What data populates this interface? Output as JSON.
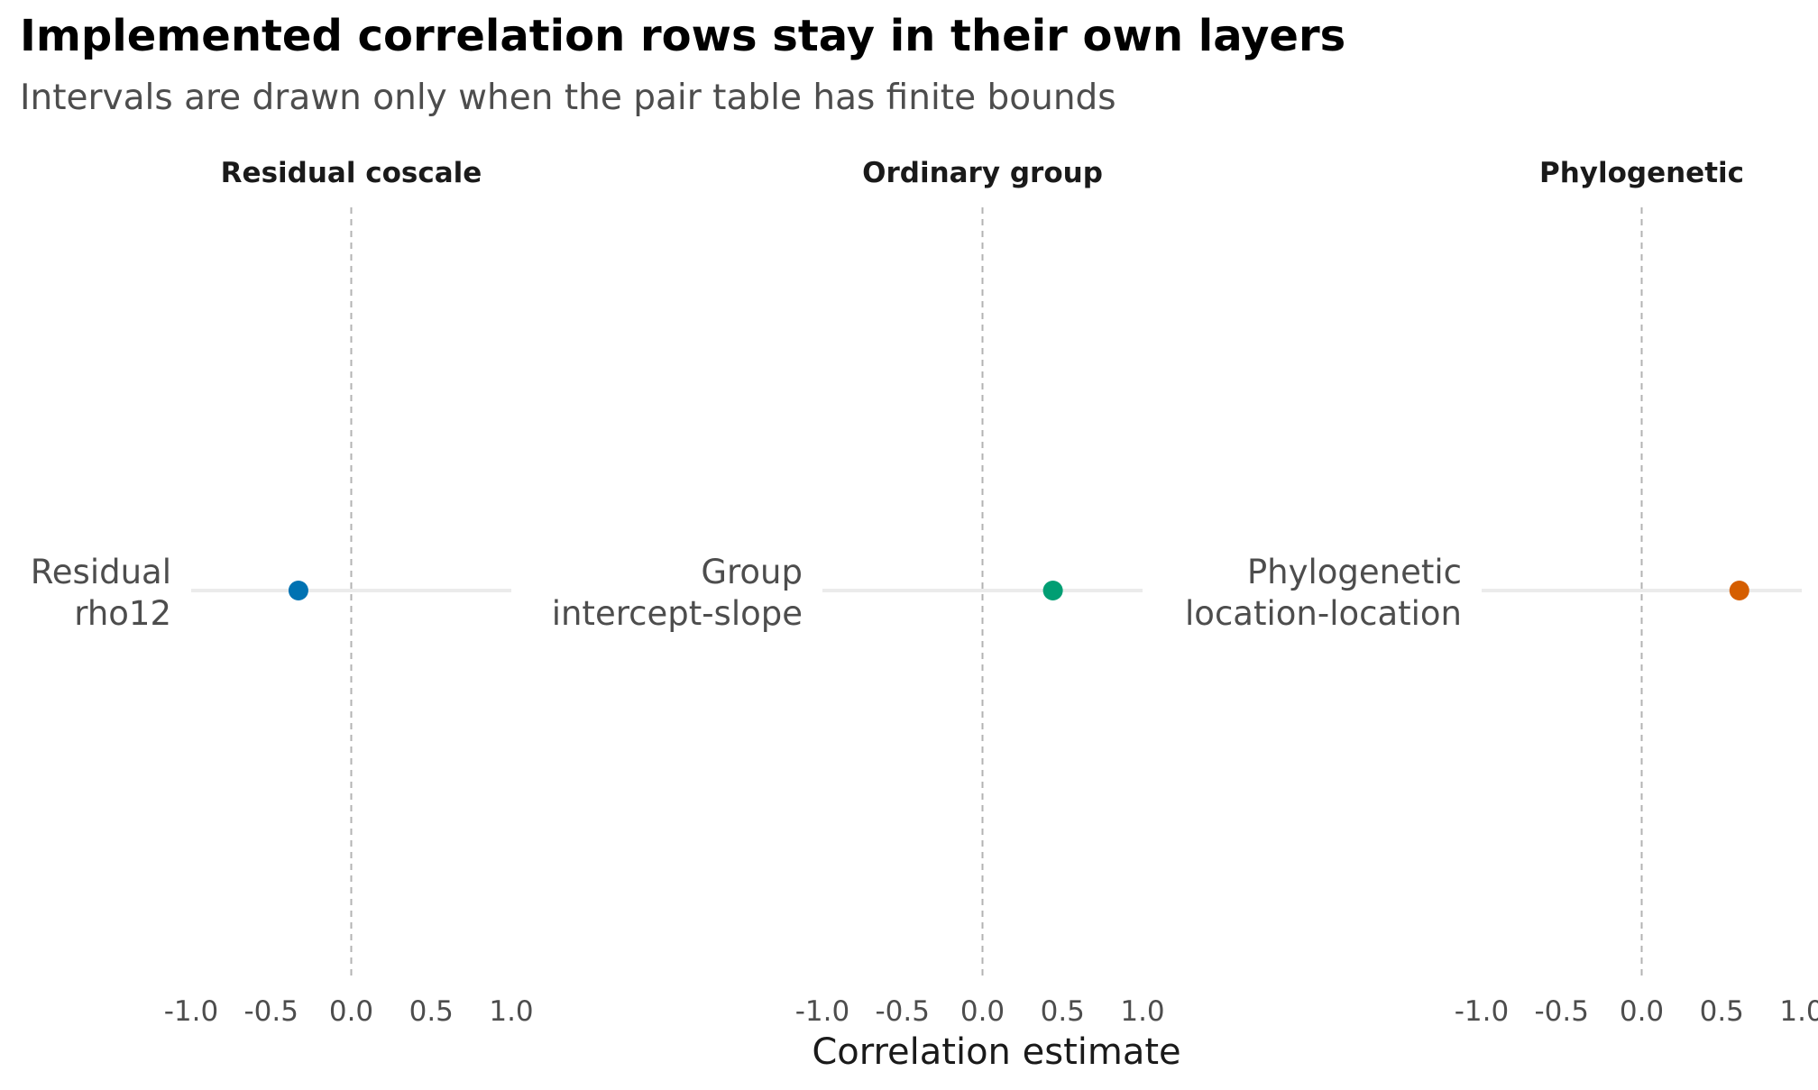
{
  "title": "Implemented correlation rows stay in their own layers",
  "subtitle": "Intervals are drawn only when the pair table has finite bounds",
  "colors": {
    "residual": "#0072B2",
    "group": "#009E73",
    "phylogenetic": "#D55E00",
    "zero_line": "#b3b3b3",
    "interval_track": "#ebebeb"
  },
  "chart_data": {
    "type": "scatter",
    "xlabel": "Correlation estimate",
    "xlim": [
      -1,
      1
    ],
    "x_ticks": [
      "-1.0",
      "-0.5",
      "0.0",
      "0.5",
      "1.0"
    ],
    "reference_line_x": 0,
    "grid": false,
    "legend": "none",
    "panels": [
      {
        "facet": "Residual coscale",
        "row_label": [
          "Residual",
          "rho12"
        ],
        "estimate": -0.33,
        "interval": [
          -1,
          1
        ],
        "color": "#0072B2"
      },
      {
        "facet": "Ordinary group",
        "row_label": [
          "Group",
          "intercept-slope"
        ],
        "estimate": 0.44,
        "interval": [
          -1,
          1
        ],
        "color": "#009E73"
      },
      {
        "facet": "Phylogenetic",
        "row_label": [
          "Phylogenetic",
          "location-location"
        ],
        "estimate": 0.61,
        "interval": [
          -1,
          1
        ],
        "color": "#D55E00"
      }
    ]
  }
}
